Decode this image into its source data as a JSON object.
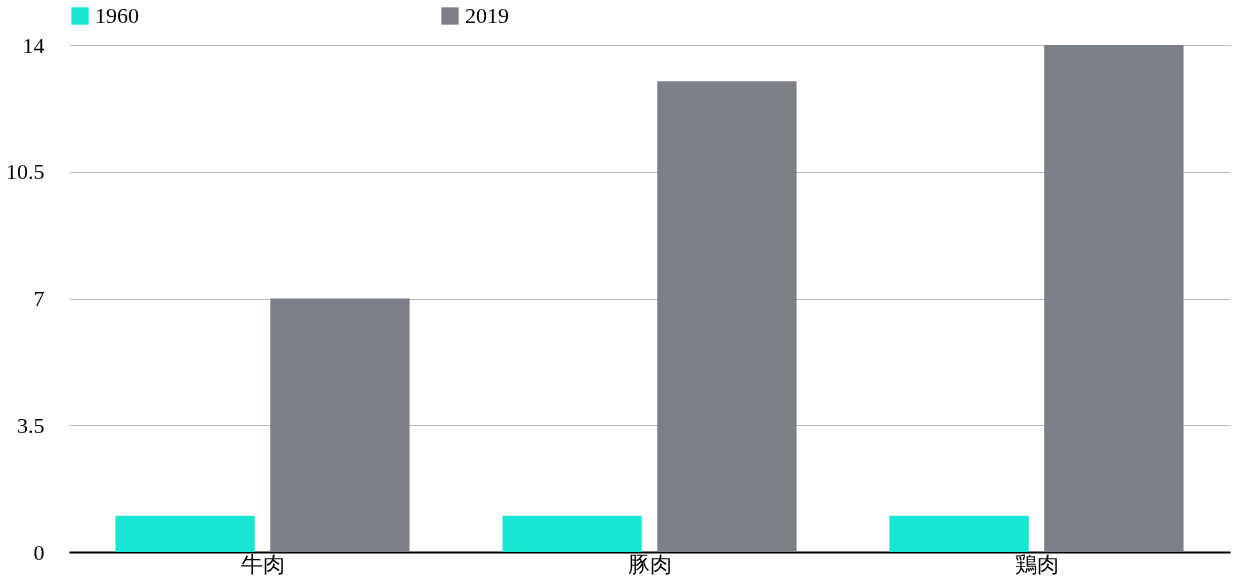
{
  "chart_data": {
    "type": "bar",
    "categories": [
      "牛肉",
      "豚肉",
      "鶏肉"
    ],
    "series": [
      {
        "name": "1960",
        "color": "#17e6d2",
        "values": [
          1,
          1,
          1
        ]
      },
      {
        "name": "2019",
        "color": "#7a7f88",
        "values": [
          7,
          13,
          14
        ]
      }
    ],
    "ylim": [
      0,
      14
    ],
    "yticks": [
      0,
      3.5,
      7,
      10.5,
      14
    ],
    "grid": "y",
    "legend": "top"
  }
}
